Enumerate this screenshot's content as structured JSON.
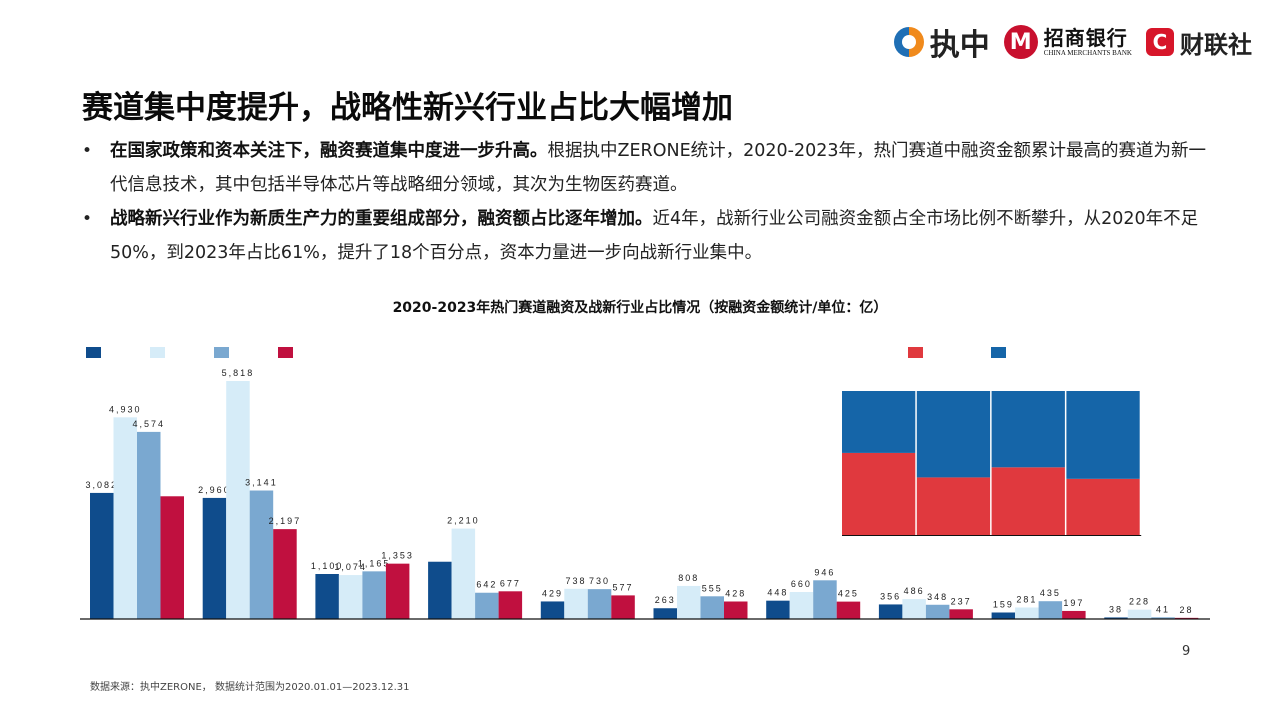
{
  "logos": {
    "zerone_text": "执中",
    "cmb_cn": "招商银行",
    "cmb_en": "CHINA MERCHANTS BANK",
    "cls_mark": "C",
    "cls_text": "财联社"
  },
  "title": "赛道集中度提升，战略性新兴行业占比大幅增加",
  "bullets": [
    {
      "bold": "在国家政策和资本关注下，融资赛道集中度进一步升高。",
      "text": "根据执中ZERONE统计，2020-2023年，热门赛道中融资金额累计最高的赛道为新一代信息技术，其中包括半导体芯片等战略细分领域，其次为生物医药赛道。"
    },
    {
      "bold": "战略新兴行业作为新质生产力的重要组成部分，融资额占比逐年增加。",
      "text": "近4年，战新行业公司融资金额占全市场比例不断攀升，从2020年不足50%，到2023年占比61%，提升了18个百分点，资本力量进一步向战新行业集中。"
    }
  ],
  "chart_title": "2020-2023年热门赛道融资及战新行业占比情况（按融资金额统计/单位：亿）",
  "page_number": "9",
  "source_note": "数据来源：执中ZERONE， 数据统计范围为2020.01.01—2023.12.31",
  "chart_data": [
    {
      "type": "bar",
      "title": "",
      "categories": [
        "",
        "",
        "",
        "",
        "",
        "",
        "",
        "",
        "",
        ""
      ],
      "series": [
        {
          "color": "#0f4c8c",
          "values": [
            3082,
            2960,
            1100,
            1400,
            429,
            263,
            448,
            356,
            159,
            38
          ]
        },
        {
          "color": "#d6ecf8",
          "values": [
            4930,
            5818,
            1074,
            2210,
            738,
            808,
            660,
            486,
            281,
            228
          ]
        },
        {
          "color": "#7aa8d0",
          "values": [
            4574,
            3141,
            1165,
            642,
            730,
            555,
            946,
            348,
            435,
            41
          ]
        },
        {
          "color": "#c0103f",
          "values": [
            3000,
            2197,
            1353,
            677,
            577,
            428,
            425,
            237,
            197,
            28
          ]
        }
      ],
      "data_labels": [
        [
          "3,082",
          "2,960",
          "1,100",
          "",
          "429",
          "263",
          "448",
          "356",
          "159",
          "38"
        ],
        [
          "4,930",
          "5,818",
          "1,074",
          "2,210",
          "738",
          "808",
          "660",
          "486",
          "281",
          "228"
        ],
        [
          "4,574",
          "3,141",
          "1,165",
          "642",
          "730",
          "555",
          "946",
          "348",
          "435",
          "41"
        ],
        [
          "",
          "2,197",
          "1,353",
          "677",
          "577",
          "428",
          "425",
          "237",
          "197",
          "28"
        ]
      ],
      "legend_position": "top-left",
      "ylim": [
        0,
        6200
      ],
      "grid": false
    },
    {
      "type": "bar",
      "stacked": true,
      "title": "",
      "categories": [
        "",
        "",
        "",
        ""
      ],
      "series": [
        {
          "color": "#e0393e",
          "values": [
            57,
            40,
            47,
            39
          ]
        },
        {
          "color": "#1565a8",
          "values": [
            43,
            60,
            53,
            61
          ]
        }
      ],
      "ylim": [
        0,
        100
      ],
      "legend_position": "top",
      "grid": false
    }
  ]
}
